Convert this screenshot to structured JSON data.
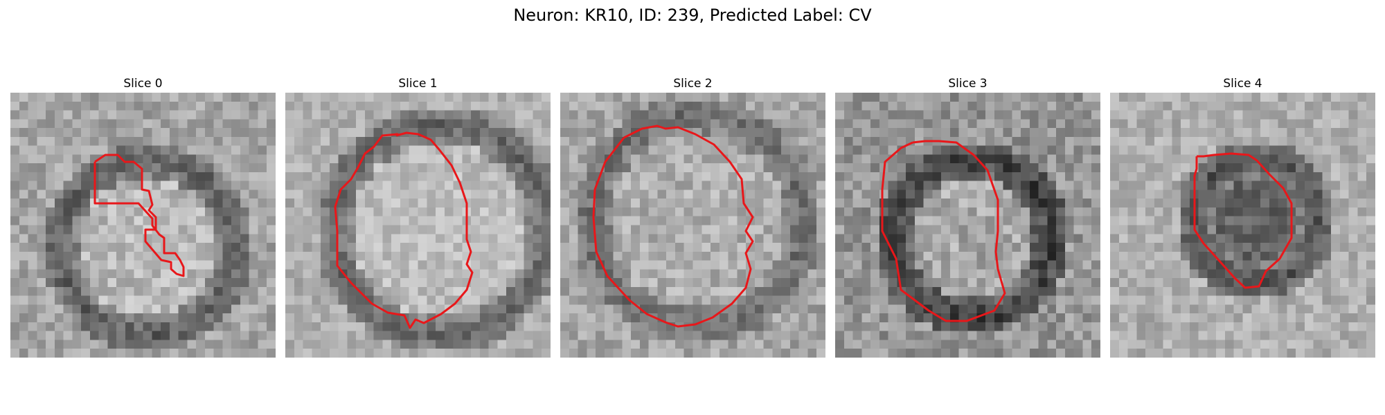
{
  "figure": {
    "title": "Neuron: KR10, ID: 239, Predicted Label: CV",
    "contour_color": "#e8171a",
    "colormap": "gray"
  },
  "panels": [
    {
      "title": "Slice 0"
    },
    {
      "title": "Slice 1"
    },
    {
      "title": "Slice 2"
    },
    {
      "title": "Slice 3"
    },
    {
      "title": "Slice 4"
    }
  ]
}
